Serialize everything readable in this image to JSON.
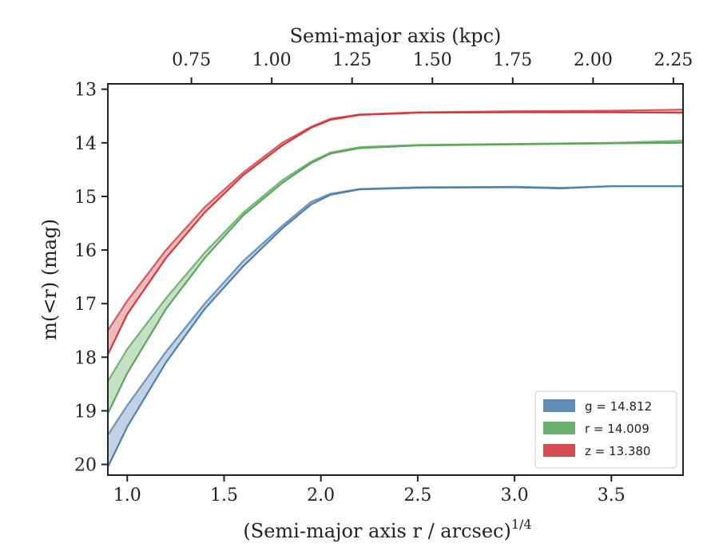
{
  "chart_data": {
    "type": "line",
    "xlabel": "(Semi-major axis r / arcsec)",
    "xlabel_exponent": "1/4",
    "ylabel": "m(<r) (mag)",
    "top_xlabel": "Semi-major axis (kpc)",
    "xlim": [
      0.9,
      3.87
    ],
    "ylim": [
      20.2,
      12.9
    ],
    "y_inverted": true,
    "top_xlim": [
      0.49,
      2.28
    ],
    "x_ticks": [
      1.0,
      1.5,
      2.0,
      2.5,
      3.0,
      3.5
    ],
    "x_tick_labels": [
      "1.0",
      "1.5",
      "2.0",
      "2.5",
      "3.0",
      "3.5"
    ],
    "y_ticks": [
      13,
      14,
      15,
      16,
      17,
      18,
      19,
      20
    ],
    "y_tick_labels": [
      "13",
      "14",
      "15",
      "16",
      "17",
      "18",
      "19",
      "20"
    ],
    "top_x_ticks": [
      0.75,
      1.0,
      1.25,
      1.5,
      1.75,
      2.0,
      2.25
    ],
    "top_x_tick_labels": [
      "0.75",
      "1.00",
      "1.25",
      "1.50",
      "1.75",
      "2.00",
      "2.25"
    ],
    "grid": false,
    "legend_position": "bottom-right",
    "series": [
      {
        "name": "g",
        "legend_label": "g = 14.812",
        "color": "#4f7fad",
        "x": [
          0.9,
          1.0,
          1.2,
          1.4,
          1.6,
          1.8,
          1.95,
          2.05,
          2.2,
          2.5,
          3.0,
          3.24,
          3.5,
          3.87
        ],
        "y_upper": [
          19.45,
          18.9,
          17.9,
          17.0,
          16.2,
          15.55,
          15.1,
          14.95,
          14.86,
          14.83,
          14.82,
          14.84,
          14.81,
          14.81
        ],
        "y_lower": [
          20.05,
          19.3,
          18.1,
          17.1,
          16.3,
          15.6,
          15.15,
          14.97,
          14.87,
          14.84,
          14.83,
          14.85,
          14.81,
          14.81
        ]
      },
      {
        "name": "r",
        "legend_label": "r = 14.009",
        "color": "#5aa65a",
        "x": [
          0.9,
          1.0,
          1.2,
          1.4,
          1.6,
          1.8,
          1.95,
          2.05,
          2.2,
          2.5,
          3.0,
          3.5,
          3.87
        ],
        "y_upper": [
          18.45,
          17.85,
          16.9,
          16.05,
          15.3,
          14.7,
          14.35,
          14.18,
          14.08,
          14.04,
          14.02,
          14.0,
          13.96
        ],
        "y_lower": [
          19.05,
          18.3,
          17.1,
          16.15,
          15.35,
          14.75,
          14.38,
          14.2,
          14.1,
          14.05,
          14.03,
          14.01,
          14.0
        ]
      },
      {
        "name": "z",
        "legend_label": "z = 13.380",
        "color": "#d03a3f",
        "x": [
          0.9,
          1.0,
          1.2,
          1.4,
          1.6,
          1.8,
          1.95,
          2.05,
          2.2,
          2.5,
          3.0,
          3.5,
          3.87
        ],
        "y_upper": [
          17.5,
          16.95,
          16.0,
          15.2,
          14.55,
          14.0,
          13.7,
          13.55,
          13.47,
          13.43,
          13.41,
          13.4,
          13.38
        ],
        "y_lower": [
          17.95,
          17.2,
          16.15,
          15.3,
          14.6,
          14.05,
          13.72,
          13.57,
          13.48,
          13.44,
          13.43,
          13.43,
          13.44
        ]
      }
    ]
  }
}
